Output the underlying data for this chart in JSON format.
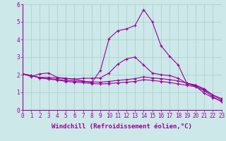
{
  "background_color": "#cce8e8",
  "grid_color": "#aacccc",
  "line_color": "#990099",
  "xlim": [
    0,
    23
  ],
  "ylim": [
    0,
    6
  ],
  "xticks": [
    0,
    1,
    2,
    3,
    4,
    5,
    6,
    7,
    8,
    9,
    10,
    11,
    12,
    13,
    14,
    15,
    16,
    17,
    18,
    19,
    20,
    21,
    22,
    23
  ],
  "yticks": [
    0,
    1,
    2,
    3,
    4,
    5,
    6
  ],
  "xlabel": "Windchill (Refroidissement éolien,°C)",
  "xlabel_fontsize": 6.5,
  "tick_fontsize": 5.5,
  "lines": [
    {
      "x": [
        0,
        1,
        2,
        3,
        4,
        5,
        6,
        7,
        8,
        9,
        10,
        11,
        12,
        13,
        14,
        15,
        16,
        17,
        18,
        19,
        20,
        21,
        22,
        23
      ],
      "y": [
        2.05,
        1.9,
        2.05,
        2.1,
        1.85,
        1.8,
        1.75,
        1.65,
        1.55,
        2.25,
        4.05,
        4.5,
        4.6,
        4.8,
        5.7,
        5.0,
        3.65,
        3.05,
        2.55,
        1.5,
        1.35,
        0.95,
        0.7,
        0.5
      ]
    },
    {
      "x": [
        0,
        1,
        2,
        3,
        4,
        5,
        6,
        7,
        8,
        9,
        10,
        11,
        12,
        13,
        14,
        15,
        16,
        17,
        18,
        19,
        20,
        21,
        22,
        23
      ],
      "y": [
        2.05,
        1.95,
        1.85,
        1.85,
        1.82,
        1.78,
        1.75,
        1.8,
        1.8,
        1.82,
        2.1,
        2.6,
        2.9,
        3.0,
        2.55,
        2.1,
        2.0,
        1.95,
        1.8,
        1.5,
        1.4,
        1.15,
        0.85,
        0.65
      ]
    },
    {
      "x": [
        0,
        1,
        2,
        3,
        4,
        5,
        6,
        7,
        8,
        9,
        10,
        11,
        12,
        13,
        14,
        15,
        16,
        17,
        18,
        19,
        20,
        21,
        22,
        23
      ],
      "y": [
        2.05,
        1.95,
        1.82,
        1.78,
        1.73,
        1.68,
        1.65,
        1.62,
        1.6,
        1.58,
        1.62,
        1.68,
        1.72,
        1.78,
        1.88,
        1.82,
        1.78,
        1.72,
        1.65,
        1.52,
        1.42,
        1.2,
        0.85,
        0.57
      ]
    },
    {
      "x": [
        0,
        1,
        2,
        3,
        4,
        5,
        6,
        7,
        8,
        9,
        10,
        11,
        12,
        13,
        14,
        15,
        16,
        17,
        18,
        19,
        20,
        21,
        22,
        23
      ],
      "y": [
        2.05,
        1.95,
        1.82,
        1.75,
        1.7,
        1.62,
        1.58,
        1.55,
        1.5,
        1.48,
        1.5,
        1.54,
        1.58,
        1.62,
        1.72,
        1.68,
        1.62,
        1.56,
        1.48,
        1.4,
        1.32,
        1.1,
        0.75,
        0.47
      ]
    }
  ]
}
